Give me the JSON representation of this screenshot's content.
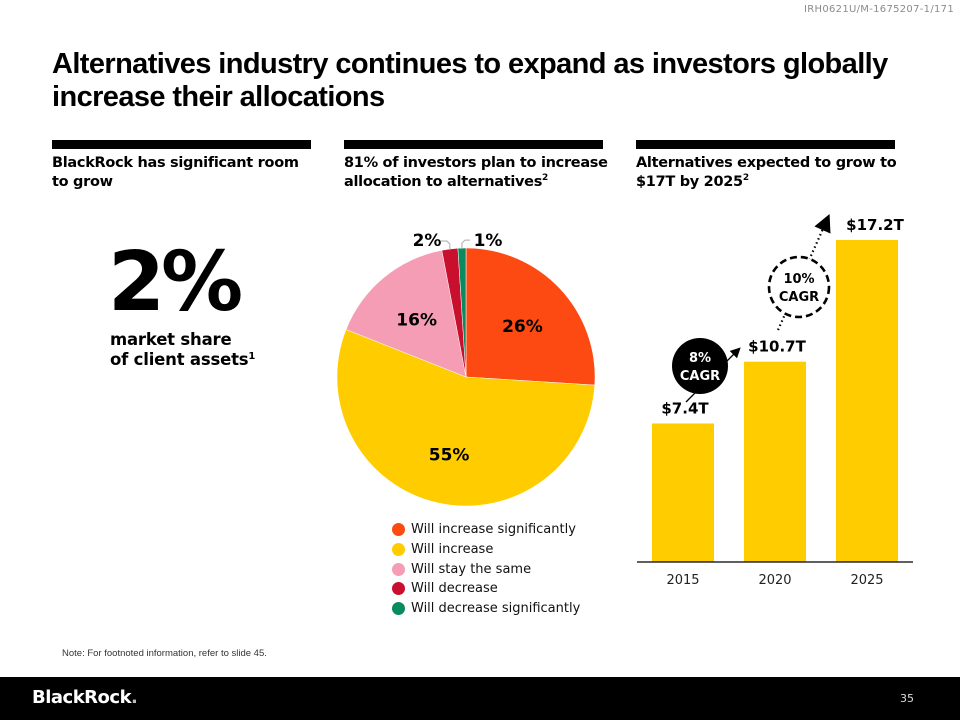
{
  "doc_id": "IRH0621U/M-1675207-1/171",
  "title": "Alternatives industry continues to expand as investors globally increase their allocations",
  "columns": [
    {
      "heading": "BlackRock has significant room to grow",
      "footnote": ""
    },
    {
      "heading": "81% of investors plan to increase allocation to alternatives",
      "footnote": "2"
    },
    {
      "heading": "Alternatives expected to grow to $17T by 2025",
      "footnote": "2"
    }
  ],
  "stat": {
    "value": "2%",
    "caption_line1": "market share",
    "caption_line2": "of client assets",
    "footnote": "1"
  },
  "colors": {
    "increase_significantly": "#FC4A12",
    "increase": "#FFCC00",
    "stay_same": "#F59DB5",
    "decrease": "#C8102E",
    "decrease_significantly": "#0A8A5F",
    "bar": "#FFCC00",
    "black": "#000000"
  },
  "chart_data": [
    {
      "type": "pie",
      "title": "81% of investors plan to increase allocation to alternatives",
      "start": "12 o'clock, clockwise",
      "slices": [
        {
          "label": "Will increase significantly",
          "value": 26,
          "display": "26%",
          "color": "#FC4A12"
        },
        {
          "label": "Will increase",
          "value": 55,
          "display": "55%",
          "color": "#FFCC00"
        },
        {
          "label": "Will stay the same",
          "value": 16,
          "display": "16%",
          "color": "#F59DB5"
        },
        {
          "label": "Will decrease",
          "value": 2,
          "display": "2%",
          "color": "#C8102E"
        },
        {
          "label": "Will decrease significantly",
          "value": 1,
          "display": "1%",
          "color": "#0A8A5F"
        }
      ],
      "legend_position": "bottom"
    },
    {
      "type": "bar",
      "title": "Alternatives expected to grow to $17T by 2025",
      "categories": [
        "2015",
        "2020",
        "2025"
      ],
      "values": [
        7.4,
        10.7,
        17.2
      ],
      "value_labels": [
        "$7.4T",
        "$10.7T",
        "$17.2T"
      ],
      "unit": "$ trillions",
      "ylim": [
        0,
        17.2
      ],
      "annotations": [
        {
          "from": "2015",
          "to": "2020",
          "line1": "8%",
          "line2": "CAGR",
          "style": "solid-filled"
        },
        {
          "from": "2020",
          "to": "2025",
          "line1": "10%",
          "line2": "CAGR",
          "style": "dashed-outline"
        }
      ],
      "grid": false
    }
  ],
  "note": "Note: For footnoted information, refer to slide 45.",
  "footer": {
    "logo": "BlackRock",
    "logo_dot": ".",
    "page_number": "35"
  }
}
